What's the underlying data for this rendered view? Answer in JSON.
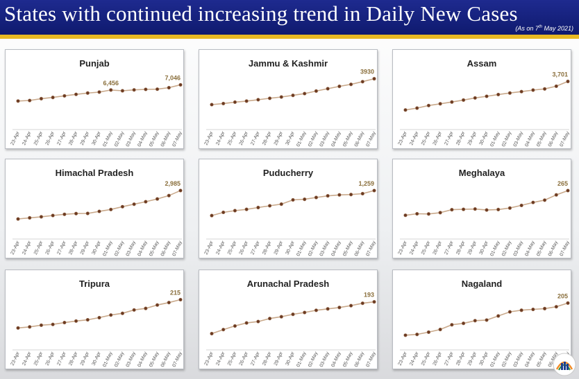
{
  "header": {
    "title": "States with continued increasing trend in Daily New Cases",
    "as_on_prefix": "(As on 7",
    "as_on_sup": "th",
    "as_on_suffix": " May 2021)"
  },
  "colors": {
    "header_bg": "#1a2585",
    "gold": "#e8b923",
    "line": "#c9a98b",
    "marker": "#6b3a22",
    "label": "#8a6f3c"
  },
  "chart_data": [
    {
      "type": "line",
      "title": "Punjab",
      "categories": [
        "23-Apr",
        "24-Apr",
        "25-Apr",
        "26-Apr",
        "27-Apr",
        "28-Apr",
        "29-Apr",
        "30-Apr",
        "01-May",
        "02-May",
        "03-May",
        "04-May",
        "05-May",
        "06-May",
        "07-May"
      ],
      "values": [
        5200,
        5260,
        5470,
        5610,
        5790,
        5960,
        6110,
        6220,
        6456,
        6370,
        6470,
        6530,
        6550,
        6720,
        7046
      ],
      "labels": [
        {
          "index": 8,
          "text": "6,456"
        },
        {
          "index": 14,
          "text": "7,046"
        }
      ],
      "ylim": [
        2500,
        8500
      ]
    },
    {
      "type": "line",
      "title": "Jammu & Kashmir",
      "categories": [
        "23-Apr",
        "24-Apr",
        "25-Apr",
        "26-Apr",
        "27-Apr",
        "28-Apr",
        "29-Apr",
        "30-Apr",
        "01-May",
        "02-May",
        "03-May",
        "04-May",
        "05-May",
        "06-May",
        "07-May"
      ],
      "values": [
        1720,
        1810,
        1930,
        2020,
        2140,
        2260,
        2370,
        2510,
        2660,
        2880,
        3080,
        3280,
        3450,
        3680,
        3930
      ],
      "labels": [
        {
          "index": 14,
          "text": "3930"
        }
      ],
      "ylim": [
        0,
        4500
      ]
    },
    {
      "type": "line",
      "title": "Assam",
      "categories": [
        "23-Apr",
        "24-Apr",
        "25-Apr",
        "26-Apr",
        "27-Apr",
        "28-Apr",
        "29-Apr",
        "30-Apr",
        "01-May",
        "02-May",
        "03-May",
        "04-May",
        "05-May",
        "06-May",
        "07-May"
      ],
      "values": [
        1260,
        1420,
        1640,
        1790,
        1940,
        2110,
        2290,
        2430,
        2580,
        2710,
        2830,
        2960,
        3060,
        3290,
        3701
      ],
      "labels": [
        {
          "index": 14,
          "text": "3,701"
        }
      ],
      "ylim": [
        0,
        4500
      ]
    },
    {
      "type": "line",
      "title": "Himachal Pradesh",
      "categories": [
        "23-Apr",
        "24-Apr",
        "25-Apr",
        "26-Apr",
        "27-Apr",
        "28-Apr",
        "29-Apr",
        "30-Apr",
        "01-May",
        "02-May",
        "03-May",
        "04-May",
        "05-May",
        "06-May",
        "07-May"
      ],
      "values": [
        1040,
        1120,
        1190,
        1280,
        1360,
        1410,
        1420,
        1560,
        1690,
        1880,
        2050,
        2220,
        2410,
        2640,
        2985
      ],
      "labels": [
        {
          "index": 14,
          "text": "2,985"
        }
      ],
      "ylim": [
        0,
        3600
      ]
    },
    {
      "type": "line",
      "title": "Puducherry",
      "categories": [
        "23-Apr",
        "24-Apr",
        "25-Apr",
        "26-Apr",
        "27-Apr",
        "28-Apr",
        "29-Apr",
        "30-Apr",
        "01-May",
        "02-May",
        "03-May",
        "04-May",
        "05-May",
        "06-May",
        "07-May"
      ],
      "values": [
        538,
        631,
        680,
        717,
        770,
        821,
        868,
        991,
        1008,
        1060,
        1107,
        1135,
        1145,
        1171,
        1259
      ],
      "labels": [
        {
          "index": 14,
          "text": "1,259"
        }
      ],
      "ylim": [
        0,
        1520
      ]
    },
    {
      "type": "line",
      "title": "Meghalaya",
      "categories": [
        "23-Apr",
        "24-Apr",
        "25-Apr",
        "26-Apr",
        "27-Apr",
        "28-Apr",
        "29-Apr",
        "30-Apr",
        "01-May",
        "02-May",
        "03-May",
        "04-May",
        "05-May",
        "06-May",
        "07-May"
      ],
      "values": [
        115,
        124,
        123,
        131,
        149,
        151,
        153,
        147,
        150,
        159,
        175,
        193,
        207,
        239,
        265
      ],
      "labels": [
        {
          "index": 14,
          "text": "265"
        }
      ],
      "ylim": [
        0,
        320
      ]
    },
    {
      "type": "line",
      "title": "Tripura",
      "categories": [
        "23-Apr",
        "24-Apr",
        "25-Apr",
        "26-Apr",
        "27-Apr",
        "28-Apr",
        "29-Apr",
        "30-Apr",
        "01-May",
        "02-May",
        "03-May",
        "04-May",
        "05-May",
        "06-May",
        "07-May"
      ],
      "values": [
        31,
        38,
        49,
        54,
        66,
        76,
        84,
        98,
        115,
        126,
        148,
        158,
        180,
        196,
        215
      ],
      "labels": [
        {
          "index": 14,
          "text": "215"
        }
      ],
      "ylim": [
        -80,
        262
      ]
    },
    {
      "type": "line",
      "title": "Arunachal Pradesh",
      "categories": [
        "23-Apr",
        "24-Apr",
        "25-Apr",
        "26-Apr",
        "27-Apr",
        "28-Apr",
        "29-Apr",
        "30-Apr",
        "01-May",
        "02-May",
        "03-May",
        "04-May",
        "05-May",
        "06-May",
        "07-May"
      ],
      "values": [
        35,
        55,
        73,
        88,
        95,
        110,
        119,
        131,
        140,
        151,
        158,
        165,
        174,
        186,
        193
      ],
      "labels": [
        {
          "index": 14,
          "text": "193"
        }
      ],
      "ylim": [
        -22,
        240
      ]
    },
    {
      "type": "line",
      "title": "Nagaland",
      "categories": [
        "23-Apr",
        "24-Apr",
        "25-Apr",
        "26-Apr",
        "27-Apr",
        "28-Apr",
        "29-Apr",
        "30-Apr",
        "01-May",
        "02-May",
        "03-May",
        "04-May",
        "05-May",
        "06-May",
        "07-May"
      ],
      "values": [
        48,
        52,
        63,
        76,
        99,
        106,
        119,
        122,
        142,
        162,
        170,
        174,
        178,
        187,
        205
      ],
      "labels": [
        {
          "index": 14,
          "text": "205"
        }
      ],
      "ylim": [
        0,
        257
      ]
    }
  ]
}
